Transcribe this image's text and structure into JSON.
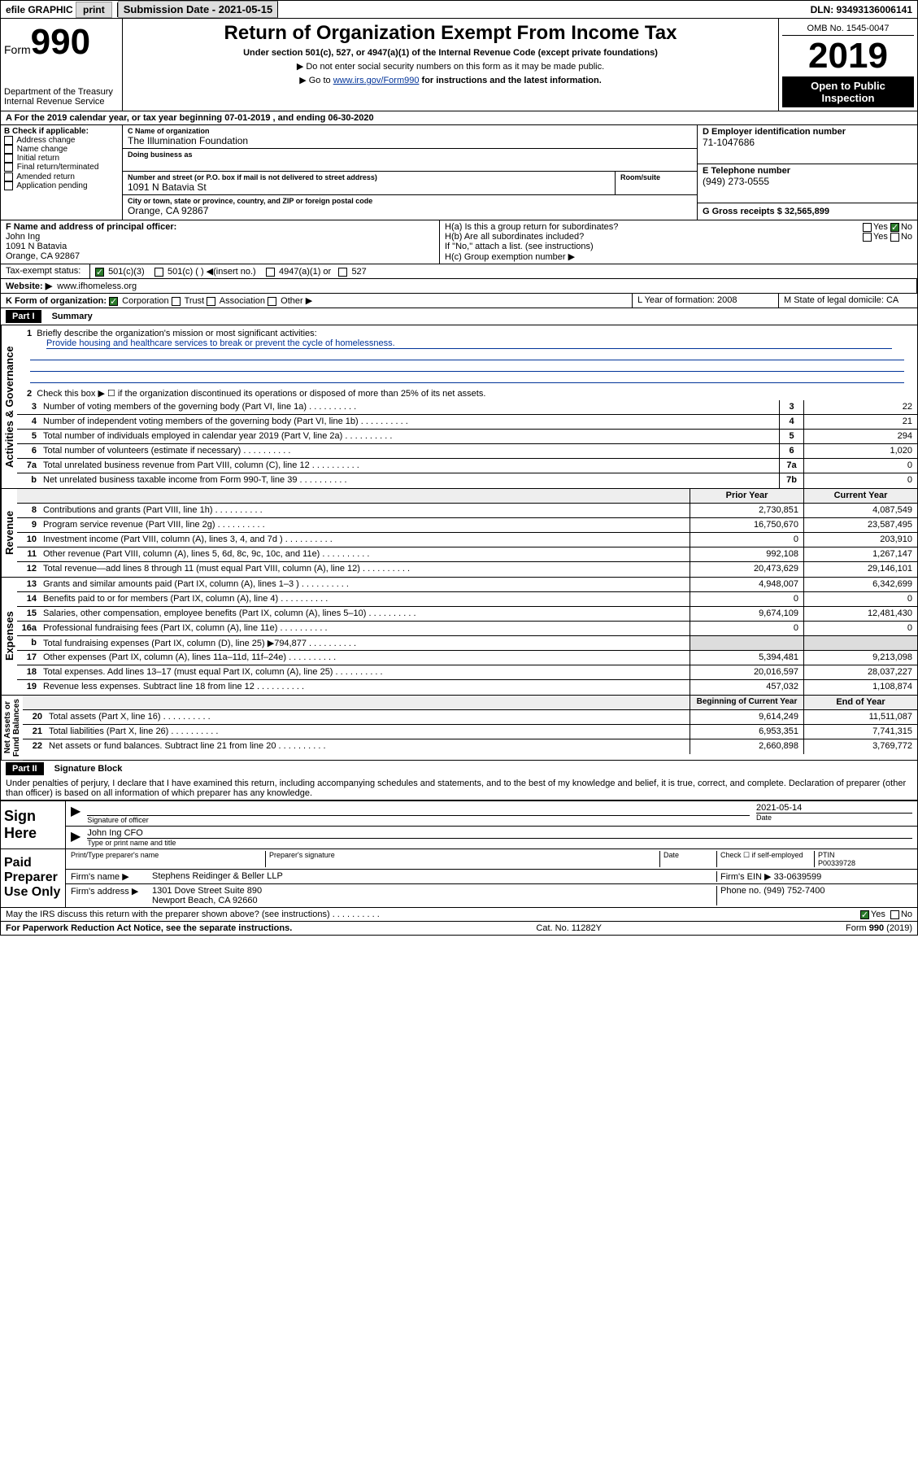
{
  "topbar": {
    "efile": "efile GRAPHIC",
    "print": "print",
    "sub_date_label": "Submission Date - 2021-05-15",
    "dln": "DLN: 93493136006141"
  },
  "header": {
    "form_prefix": "Form",
    "form_num": "990",
    "dept": "Department of the Treasury\nInternal Revenue Service",
    "title": "Return of Organization Exempt From Income Tax",
    "sub1": "Under section 501(c), 527, or 4947(a)(1) of the Internal Revenue Code (except private foundations)",
    "sub2": "▶ Do not enter social security numbers on this form as it may be made public.",
    "sub3_pre": "▶ Go to ",
    "sub3_link": "www.irs.gov/Form990",
    "sub3_post": " for instructions and the latest information.",
    "omb": "OMB No. 1545-0047",
    "year": "2019",
    "inspect": "Open to Public Inspection"
  },
  "rowA": "A For the 2019 calendar year, or tax year beginning 07-01-2019   , and ending 06-30-2020",
  "sectionB": {
    "label": "B Check if applicable:",
    "opts": [
      "Address change",
      "Name change",
      "Initial return",
      "Final return/terminated",
      "Amended return",
      "Application pending"
    ]
  },
  "org": {
    "c_label": "C Name of organization",
    "name": "The Illumination Foundation",
    "dba_label": "Doing business as",
    "dba": "",
    "addr_label": "Number and street (or P.O. box if mail is not delivered to street address)",
    "room_label": "Room/suite",
    "addr": "1091 N Batavia St",
    "city_label": "City or town, state or province, country, and ZIP or foreign postal code",
    "city": "Orange, CA  92867",
    "d_label": "D Employer identification number",
    "ein": "71-1047686",
    "e_label": "E Telephone number",
    "phone": "(949) 273-0555",
    "g_label": "G Gross receipts $ 32,565,899"
  },
  "rowF": {
    "f_label": "F  Name and address of principal officer:",
    "officer": "John Ing\n1091 N Batavia\nOrange, CA  92867",
    "ha": "H(a)  Is this a group return for subordinates?",
    "hb": "H(b)  Are all subordinates included?",
    "hb_note": "If \"No,\" attach a list. (see instructions)",
    "hc": "H(c)  Group exemption number ▶"
  },
  "taxexempt": {
    "label": "Tax-exempt status:",
    "opts": [
      "501(c)(3)",
      "501(c) (  ) ◀(insert no.)",
      "4947(a)(1) or",
      "527"
    ]
  },
  "website": {
    "label": "Website: ▶",
    "val": "www.ifhomeless.org"
  },
  "rowK": {
    "label": "K Form of organization:",
    "opts": [
      "Corporation",
      "Trust",
      "Association",
      "Other ▶"
    ],
    "l_label": "L Year of formation: 2008",
    "m_label": "M State of legal domicile: CA"
  },
  "part1": {
    "title": "Part I",
    "sub": "Summary",
    "line1": "Briefly describe the organization's mission or most significant activities:",
    "mission": "Provide housing and healthcare services to break or prevent the cycle of homelessness.",
    "line2": "Check this box ▶ ☐ if the organization discontinued its operations or disposed of more than 25% of its net assets."
  },
  "gov_rows": [
    {
      "n": "3",
      "d": "Number of voting members of the governing body (Part VI, line 1a)",
      "b": "3",
      "v": "22"
    },
    {
      "n": "4",
      "d": "Number of independent voting members of the governing body (Part VI, line 1b)",
      "b": "4",
      "v": "21"
    },
    {
      "n": "5",
      "d": "Total number of individuals employed in calendar year 2019 (Part V, line 2a)",
      "b": "5",
      "v": "294"
    },
    {
      "n": "6",
      "d": "Total number of volunteers (estimate if necessary)",
      "b": "6",
      "v": "1,020"
    },
    {
      "n": "7a",
      "d": "Total unrelated business revenue from Part VIII, column (C), line 12",
      "b": "7a",
      "v": "0"
    },
    {
      "n": "b",
      "d": "Net unrelated business taxable income from Form 990-T, line 39",
      "b": "7b",
      "v": "0"
    }
  ],
  "rev_header": {
    "b": "",
    "py": "Prior Year",
    "cy": "Current Year"
  },
  "rev_rows": [
    {
      "n": "8",
      "d": "Contributions and grants (Part VIII, line 1h)",
      "py": "2,730,851",
      "cy": "4,087,549"
    },
    {
      "n": "9",
      "d": "Program service revenue (Part VIII, line 2g)",
      "py": "16,750,670",
      "cy": "23,587,495"
    },
    {
      "n": "10",
      "d": "Investment income (Part VIII, column (A), lines 3, 4, and 7d )",
      "py": "0",
      "cy": "203,910"
    },
    {
      "n": "11",
      "d": "Other revenue (Part VIII, column (A), lines 5, 6d, 8c, 9c, 10c, and 11e)",
      "py": "992,108",
      "cy": "1,267,147"
    },
    {
      "n": "12",
      "d": "Total revenue—add lines 8 through 11 (must equal Part VIII, column (A), line 12)",
      "py": "20,473,629",
      "cy": "29,146,101"
    }
  ],
  "exp_rows": [
    {
      "n": "13",
      "d": "Grants and similar amounts paid (Part IX, column (A), lines 1–3 )",
      "py": "4,948,007",
      "cy": "6,342,699"
    },
    {
      "n": "14",
      "d": "Benefits paid to or for members (Part IX, column (A), line 4)",
      "py": "0",
      "cy": "0"
    },
    {
      "n": "15",
      "d": "Salaries, other compensation, employee benefits (Part IX, column (A), lines 5–10)",
      "py": "9,674,109",
      "cy": "12,481,430"
    },
    {
      "n": "16a",
      "d": "Professional fundraising fees (Part IX, column (A), line 11e)",
      "py": "0",
      "cy": "0"
    },
    {
      "n": "b",
      "d": "Total fundraising expenses (Part IX, column (D), line 25) ▶794,877",
      "py": "",
      "cy": "",
      "gray": true
    },
    {
      "n": "17",
      "d": "Other expenses (Part IX, column (A), lines 11a–11d, 11f–24e)",
      "py": "5,394,481",
      "cy": "9,213,098"
    },
    {
      "n": "18",
      "d": "Total expenses. Add lines 13–17 (must equal Part IX, column (A), line 25)",
      "py": "20,016,597",
      "cy": "28,037,227"
    },
    {
      "n": "19",
      "d": "Revenue less expenses. Subtract line 18 from line 12",
      "py": "457,032",
      "cy": "1,108,874"
    }
  ],
  "net_header": {
    "py": "Beginning of Current Year",
    "cy": "End of Year"
  },
  "net_rows": [
    {
      "n": "20",
      "d": "Total assets (Part X, line 16)",
      "py": "9,614,249",
      "cy": "11,511,087"
    },
    {
      "n": "21",
      "d": "Total liabilities (Part X, line 26)",
      "py": "6,953,351",
      "cy": "7,741,315"
    },
    {
      "n": "22",
      "d": "Net assets or fund balances. Subtract line 21 from line 20",
      "py": "2,660,898",
      "cy": "3,769,772"
    }
  ],
  "part2": {
    "title": "Part II",
    "sub": "Signature Block",
    "perjury": "Under penalties of perjury, I declare that I have examined this return, including accompanying schedules and statements, and to the best of my knowledge and belief, it is true, correct, and complete. Declaration of preparer (other than officer) is based on all information of which preparer has any knowledge."
  },
  "sign": {
    "here": "Sign Here",
    "sig_label": "Signature of officer",
    "date": "2021-05-14",
    "date_label": "Date",
    "name": "John Ing  CFO",
    "name_label": "Type or print name and title"
  },
  "preparer": {
    "label": "Paid Preparer Use Only",
    "h1": "Print/Type preparer's name",
    "h2": "Preparer's signature",
    "h3": "Date",
    "h4_pre": "Check ☐ if self-employed",
    "h5": "PTIN",
    "ptin": "P00339728",
    "firm_label": "Firm's name    ▶",
    "firm": "Stephens Reidinger & Beller LLP",
    "ein_label": "Firm's EIN ▶",
    "ein": "33-0639599",
    "addr_label": "Firm's address ▶",
    "addr": "1301 Dove Street Suite 890\nNewport Beach, CA  92660",
    "phone_label": "Phone no.",
    "phone": "(949) 752-7400"
  },
  "discuss": "May the IRS discuss this return with the preparer shown above? (see instructions)",
  "footer": {
    "left": "For Paperwork Reduction Act Notice, see the separate instructions.",
    "mid": "Cat. No. 11282Y",
    "right": "Form 990 (2019)"
  }
}
